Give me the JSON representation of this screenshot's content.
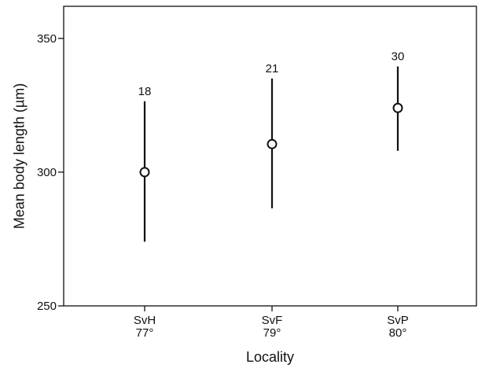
{
  "chart_data": {
    "type": "errorbar",
    "title": "",
    "xlabel": "Locality",
    "ylabel": "Mean body length (µm)",
    "ylim": [
      250,
      362
    ],
    "yticks": [
      250,
      300,
      350
    ],
    "ytick_labels": [
      "250",
      "300",
      "350"
    ],
    "grid": false,
    "legend": "none",
    "categories": [
      {
        "label": "SvH",
        "sublabel": "77°"
      },
      {
        "label": "SvF",
        "sublabel": "79°"
      },
      {
        "label": "SvP",
        "sublabel": "80°"
      }
    ],
    "series": [
      {
        "mean": [
          300,
          310.5,
          324
        ],
        "lower": [
          274,
          286.5,
          308
        ],
        "upper": [
          326.5,
          335,
          339.5
        ],
        "n_labels": [
          "18",
          "21",
          "30"
        ]
      }
    ],
    "colors": {
      "mark": "#111111",
      "axis": "#111111",
      "background": "#ffffff"
    }
  }
}
